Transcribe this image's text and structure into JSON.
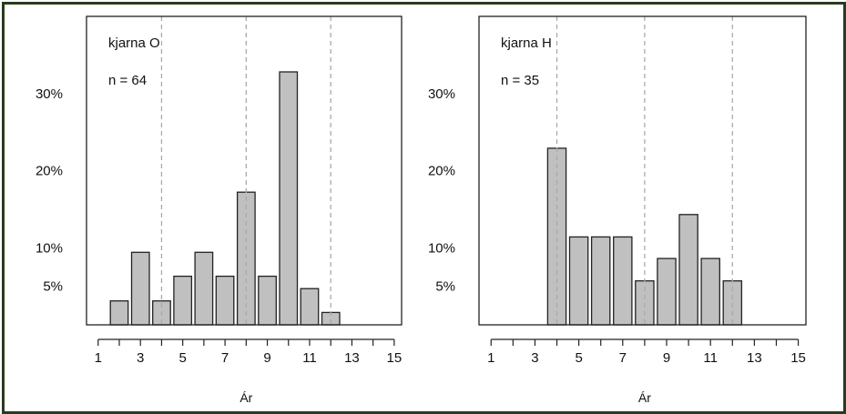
{
  "chart_data": [
    {
      "type": "bar",
      "title": "kjarna O",
      "n_label": "n =  64",
      "xlabel": "Ár",
      "ylabel": "",
      "x": [
        2,
        3,
        4,
        5,
        6,
        7,
        8,
        9,
        10,
        11,
        12
      ],
      "values": [
        3.1,
        9.4,
        3.1,
        6.3,
        9.4,
        6.3,
        17.2,
        6.3,
        32.8,
        4.7,
        1.6
      ],
      "xlim": [
        1,
        15
      ],
      "ylim": [
        0,
        40
      ],
      "xticks": [
        1,
        3,
        5,
        7,
        9,
        11,
        13,
        15
      ],
      "yticks": [
        5,
        10,
        20,
        30
      ],
      "ytick_labels": [
        "5%",
        "10%",
        "20%",
        "30%"
      ],
      "vlines": [
        4,
        8,
        12
      ],
      "bar_color": "#c0c0c0",
      "grid": false
    },
    {
      "type": "bar",
      "title": "kjarna H",
      "n_label": "n =  35",
      "xlabel": "Ár",
      "ylabel": "",
      "x": [
        4,
        5,
        6,
        7,
        8,
        9,
        10,
        11,
        12
      ],
      "values": [
        22.9,
        11.4,
        11.4,
        11.4,
        5.7,
        8.6,
        14.3,
        8.6,
        5.7
      ],
      "xlim": [
        1,
        15
      ],
      "ylim": [
        0,
        40
      ],
      "xticks": [
        1,
        3,
        5,
        7,
        9,
        11,
        13,
        15
      ],
      "yticks": [
        5,
        10,
        20,
        30
      ],
      "ytick_labels": [
        "5%",
        "10%",
        "20%",
        "30%"
      ],
      "vlines": [
        4,
        8,
        12
      ],
      "bar_color": "#c0c0c0",
      "grid": false
    }
  ]
}
